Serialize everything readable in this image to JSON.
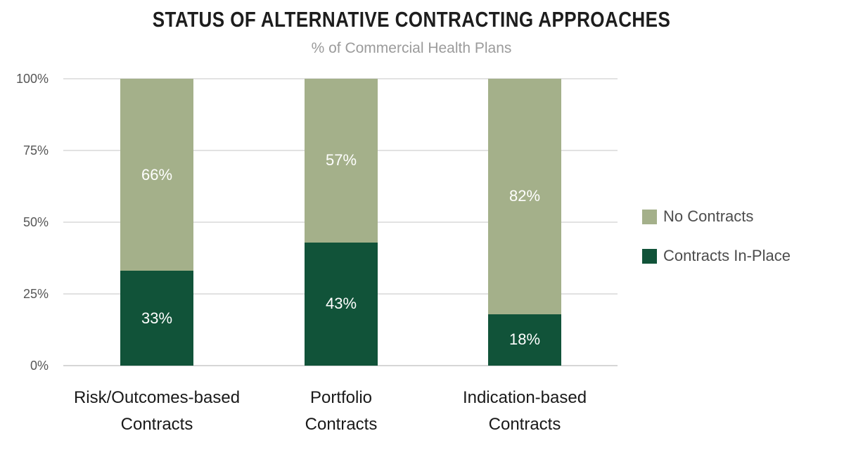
{
  "chart_data": {
    "type": "bar",
    "stacked": true,
    "title": "STATUS OF ALTERNATIVE CONTRACTING APPROACHES",
    "subtitle": "% of Commercial Health Plans",
    "categories": [
      "Risk/Outcomes-based\nContracts",
      "Portfolio\nContracts",
      "Indication-based\nContracts"
    ],
    "series": [
      {
        "name": "Contracts In-Place",
        "color": "#115339",
        "values": [
          33,
          43,
          18
        ]
      },
      {
        "name": "No Contracts",
        "color": "#a4b08a",
        "values": [
          66,
          57,
          82
        ]
      }
    ],
    "value_suffix": "%",
    "value_labels": [
      "33%",
      "43%",
      "18%",
      "66%",
      "57%",
      "82%"
    ],
    "xlabel": "",
    "ylabel": "",
    "ylim": [
      0,
      100
    ],
    "yticks": [
      0,
      25,
      50,
      75,
      100
    ],
    "ytick_labels": [
      "0%",
      "25%",
      "50%",
      "75%",
      "100%"
    ],
    "grid": "horizontal",
    "legend_position": "right",
    "legend": [
      "No Contracts",
      "Contracts In-Place"
    ],
    "colors": {
      "no_contracts": "#a4b08a",
      "contracts_in_place": "#115339",
      "bar_value_text": "#ffffff",
      "gridline": "#e2e2e2",
      "title_text": "#1d1d1d",
      "subtitle_text": "#9b9b9b",
      "axis_text": "#565656",
      "category_text": "#191919",
      "legend_text": "#4d4d4d"
    }
  }
}
